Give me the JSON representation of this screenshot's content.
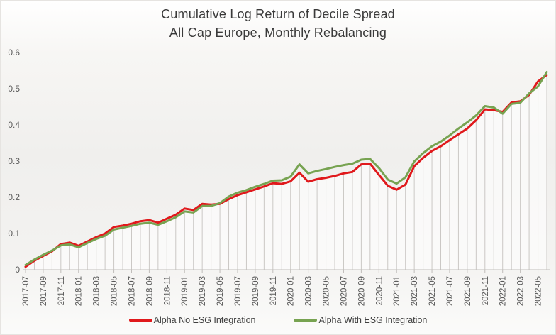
{
  "title": {
    "line1": "Cumulative Log Return of Decile Spread",
    "line2": "All Cap Europe, Monthly Rebalancing"
  },
  "colors": {
    "red_series": "#e0191c",
    "green_series": "#77a351",
    "drop_line": "#cbc8c5",
    "axis": "#c0bdba",
    "tick_text": "#595959",
    "title_text": "#3a3a3a"
  },
  "legend": {
    "items": [
      {
        "label": "Alpha No ESG Integration",
        "color": "#e0191c"
      },
      {
        "label": "Alpha With ESG Integration",
        "color": "#77a351"
      }
    ]
  },
  "chart_data": {
    "type": "line",
    "title": "Cumulative Log Return of Decile Spread — All Cap Europe, Monthly Rebalancing",
    "xlabel": "",
    "ylabel": "",
    "ylim": [
      0,
      0.6
    ],
    "yticks": [
      0,
      0.1,
      0.2,
      0.3,
      0.4,
      0.5,
      0.6
    ],
    "ytick_labels": [
      "0",
      "0.1",
      "0.2",
      "0.3",
      "0.4",
      "0.5",
      "0.6"
    ],
    "xtick_every": 2,
    "grid": "vertical drop lines at each monthly point, no horizontal gridlines",
    "legend_position": "bottom",
    "x": [
      "2017-07",
      "2017-08",
      "2017-09",
      "2017-10",
      "2017-11",
      "2017-12",
      "2018-01",
      "2018-02",
      "2018-03",
      "2018-04",
      "2018-05",
      "2018-06",
      "2018-07",
      "2018-08",
      "2018-09",
      "2018-10",
      "2018-11",
      "2018-12",
      "2019-01",
      "2019-02",
      "2019-03",
      "2019-04",
      "2019-05",
      "2019-06",
      "2019-07",
      "2019-08",
      "2019-09",
      "2019-10",
      "2019-11",
      "2019-12",
      "2020-01",
      "2020-02",
      "2020-03",
      "2020-04",
      "2020-05",
      "2020-06",
      "2020-07",
      "2020-08",
      "2020-09",
      "2020-10",
      "2020-11",
      "2020-12",
      "2021-01",
      "2021-02",
      "2021-03",
      "2021-04",
      "2021-05",
      "2021-06",
      "2021-07",
      "2021-08",
      "2021-09",
      "2021-10",
      "2021-11",
      "2021-12",
      "2022-01",
      "2022-02",
      "2022-03",
      "2022-04",
      "2022-05",
      "2022-06"
    ],
    "series": [
      {
        "name": "Alpha No ESG Integration",
        "color": "#e0191c",
        "values": [
          0.008,
          0.025,
          0.038,
          0.051,
          0.071,
          0.075,
          0.066,
          0.078,
          0.09,
          0.1,
          0.118,
          0.122,
          0.127,
          0.134,
          0.137,
          0.13,
          0.141,
          0.152,
          0.169,
          0.165,
          0.182,
          0.18,
          0.182,
          0.195,
          0.206,
          0.214,
          0.222,
          0.23,
          0.239,
          0.237,
          0.244,
          0.268,
          0.243,
          0.25,
          0.254,
          0.259,
          0.266,
          0.27,
          0.291,
          0.293,
          0.262,
          0.232,
          0.221,
          0.235,
          0.286,
          0.309,
          0.328,
          0.341,
          0.358,
          0.374,
          0.39,
          0.413,
          0.443,
          0.441,
          0.436,
          0.462,
          0.465,
          0.483,
          0.52,
          0.538
        ]
      },
      {
        "name": "Alpha With ESG Integration",
        "color": "#77a351",
        "values": [
          0.013,
          0.028,
          0.041,
          0.053,
          0.067,
          0.07,
          0.062,
          0.074,
          0.085,
          0.094,
          0.111,
          0.116,
          0.121,
          0.127,
          0.13,
          0.124,
          0.134,
          0.145,
          0.161,
          0.158,
          0.176,
          0.176,
          0.184,
          0.202,
          0.213,
          0.22,
          0.229,
          0.237,
          0.246,
          0.247,
          0.257,
          0.291,
          0.266,
          0.273,
          0.278,
          0.284,
          0.289,
          0.293,
          0.304,
          0.306,
          0.281,
          0.249,
          0.238,
          0.255,
          0.299,
          0.322,
          0.341,
          0.354,
          0.371,
          0.39,
          0.407,
          0.426,
          0.452,
          0.448,
          0.431,
          0.458,
          0.461,
          0.487,
          0.506,
          0.546
        ]
      }
    ]
  }
}
